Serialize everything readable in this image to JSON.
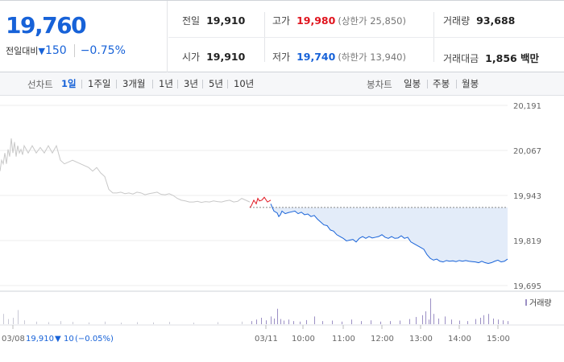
{
  "quote": {
    "price": "19,760",
    "change_label": "전일대비",
    "change_arrow": "▼",
    "change_value": "150",
    "change_pct": "−0.75%",
    "prev_close": {
      "label": "전일",
      "value": "19,910"
    },
    "high": {
      "label": "고가",
      "value": "19,980",
      "sub": "(상한가 25,850)"
    },
    "volume": {
      "label": "거래량",
      "value": "93,688"
    },
    "open": {
      "label": "시가",
      "value": "19,910"
    },
    "low": {
      "label": "저가",
      "value": "19,740",
      "sub": "(하한가 13,940)"
    },
    "amount": {
      "label": "거래대금",
      "value": "1,856 백만"
    }
  },
  "toolbar": {
    "line_label": "선차트",
    "line_periods": [
      "1일",
      "1주일",
      "3개월",
      "1년",
      "3년",
      "5년",
      "10년"
    ],
    "active_period": "1일",
    "candle_label": "봉차트",
    "candle_periods": [
      "일봉",
      "주봉",
      "월봉"
    ]
  },
  "colors": {
    "up": "#e0141e",
    "down": "#1762d8",
    "prev_day": "#c8c8c8",
    "fill": "#e3ecf9",
    "volume": "#9b8fc4"
  },
  "chart_data": {
    "type": "line",
    "y_ticks": [
      "20,191",
      "20,067",
      "19,943",
      "19,819",
      "19,695"
    ],
    "y_tick_values": [
      20191,
      20067,
      19943,
      19819,
      19695
    ],
    "ylim": [
      19685,
      20205
    ],
    "x_ticks": [
      "03/08",
      "03/11",
      "10:00",
      "11:00",
      "12:00",
      "13:00",
      "14:00",
      "15:00"
    ],
    "reference_value": 19910,
    "volume_legend": "거래량",
    "prev_day_note": {
      "date": "03/08",
      "price": "19,910",
      "arrow": "▼",
      "change": "10",
      "pct": "(−0.05%)"
    },
    "series": [
      {
        "role": "previous-day",
        "x": [
          0,
          2,
          4,
          6,
          8,
          10,
          12,
          14,
          16,
          18,
          20,
          22,
          24,
          26,
          28,
          30,
          35,
          40,
          45,
          50,
          55,
          60,
          65,
          70,
          75,
          80,
          85,
          90,
          95,
          100,
          105,
          110,
          115,
          120,
          125,
          130,
          135,
          140,
          145,
          150,
          155,
          160,
          165,
          170,
          175,
          180,
          185,
          190,
          195,
          200,
          205,
          210,
          215,
          220,
          225,
          230,
          235,
          240,
          245,
          250,
          255,
          260,
          265,
          270,
          275,
          280,
          285,
          290,
          295,
          300,
          305,
          310
        ],
        "y": [
          20010,
          20040,
          20030,
          20060,
          20030,
          20070,
          20050,
          20100,
          20060,
          20090,
          20050,
          20080,
          20060,
          20070,
          20055,
          20080,
          20060,
          20080,
          20060,
          20075,
          20060,
          20080,
          20060,
          20080,
          20040,
          20030,
          20035,
          20040,
          20035,
          20030,
          20025,
          20020,
          20010,
          20020,
          20005,
          19995,
          19960,
          19950,
          19950,
          19952,
          19948,
          19950,
          19947,
          19952,
          19950,
          19945,
          19948,
          19950,
          19952,
          19946,
          19945,
          19948,
          19943,
          19935,
          19930,
          19928,
          19925,
          19925,
          19927,
          19924,
          19926,
          19925,
          19928,
          19926,
          19925,
          19928,
          19930,
          19925,
          19927,
          19935,
          19930,
          19925
        ]
      },
      {
        "role": "today-above-reference",
        "x": [
          310,
          312,
          315,
          318,
          320,
          322,
          325,
          328,
          332,
          336
        ],
        "y": [
          19910,
          19915,
          19930,
          19920,
          19935,
          19928,
          19930,
          19938,
          19925,
          19930
        ]
      },
      {
        "role": "today-below-reference",
        "x": [
          336,
          340,
          344,
          346,
          348,
          350,
          354,
          358,
          362,
          366,
          370,
          374,
          378,
          382,
          386,
          390,
          394,
          398,
          402,
          406,
          410,
          414,
          418,
          422,
          426,
          430,
          434,
          438,
          442,
          446,
          450,
          454,
          458,
          462,
          466,
          470,
          474,
          478,
          482,
          486,
          490,
          494,
          498,
          502,
          506,
          510,
          514,
          518,
          522,
          526,
          530,
          534,
          538,
          542,
          546,
          550,
          554,
          558,
          562,
          566,
          570,
          574,
          578,
          582,
          586,
          590,
          594,
          598,
          602,
          606,
          610,
          614,
          618,
          622,
          626,
          630
        ],
        "y": [
          19920,
          19900,
          19895,
          19885,
          19890,
          19900,
          19893,
          19896,
          19898,
          19900,
          19893,
          19897,
          19890,
          19892,
          19885,
          19888,
          19878,
          19870,
          19862,
          19860,
          19848,
          19845,
          19835,
          19830,
          19825,
          19818,
          19820,
          19822,
          19815,
          19825,
          19830,
          19825,
          19830,
          19826,
          19828,
          19830,
          19835,
          19828,
          19825,
          19830,
          19825,
          19826,
          19832,
          19825,
          19828,
          19815,
          19810,
          19805,
          19800,
          19795,
          19780,
          19770,
          19765,
          19768,
          19762,
          19760,
          19764,
          19762,
          19763,
          19761,
          19764,
          19762,
          19764,
          19762,
          19761,
          19760,
          19758,
          19762,
          19758,
          19756,
          19758,
          19762,
          19765,
          19760,
          19762,
          19768
        ]
      }
    ],
    "volume": {
      "x": [
        4,
        10,
        16,
        22,
        30,
        45,
        60,
        75,
        90,
        110,
        130,
        150,
        170,
        190,
        210,
        240,
        270,
        300,
        312,
        318,
        324,
        330,
        336,
        340,
        344,
        348,
        352,
        358,
        364,
        372,
        380,
        390,
        400,
        412,
        424,
        436,
        448,
        460,
        472,
        484,
        496,
        508,
        516,
        524,
        528,
        532,
        534,
        538,
        544,
        552,
        560,
        570,
        580,
        590,
        596,
        600,
        606,
        612,
        618,
        624,
        630
      ],
      "v": [
        40,
        20,
        25,
        55,
        15,
        10,
        8,
        12,
        9,
        7,
        10,
        6,
        8,
        7,
        9,
        6,
        8,
        10,
        12,
        18,
        25,
        15,
        30,
        22,
        60,
        20,
        14,
        18,
        12,
        10,
        16,
        30,
        12,
        14,
        10,
        18,
        12,
        15,
        10,
        12,
        14,
        20,
        28,
        35,
        50,
        18,
        100,
        40,
        22,
        30,
        18,
        14,
        12,
        20,
        25,
        35,
        40,
        22,
        18,
        15,
        12
      ]
    }
  }
}
